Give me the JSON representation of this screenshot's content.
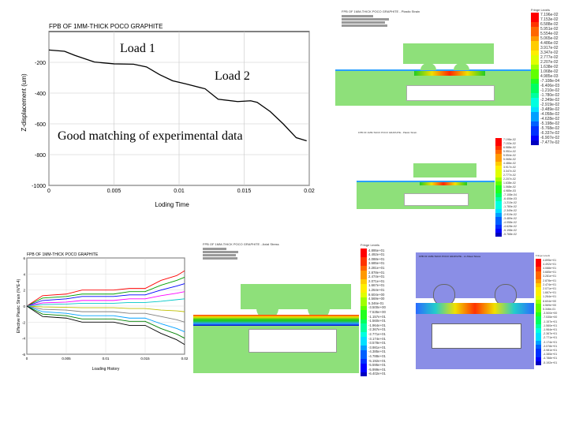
{
  "annotations": {
    "load1": "Load 1",
    "load2": "Load 2",
    "matching": "Good matching of experimental data"
  },
  "top_plot": {
    "title": "FPB OF 1MM-THICK POCO GRAPHITE",
    "xlabel": "Loding Time",
    "ylabel": "Z-displacement (um)"
  },
  "bottom_plot": {
    "title": "FPB OF 1MM-THICK POCO GRAPHITE",
    "xlabel": "Loading History",
    "ylabel": "Effective Plastic Strain (%*E-4)"
  },
  "fea": {
    "panel1_title": "FPB OF 1MM-THICK POCO GRAPHITE - Plastic Strain",
    "panel1_fringe_title": "Fringe Levels",
    "panel2_title": "FPB OF 1MM-THICK POCO GRAPHITE - Plastic Strain",
    "panel3_title": "FPB OF 1MM-THICK POCO GRAPHITE - Axial Stress",
    "panel4_title": "FPB OF 1MM-THICK POCO GRAPHITE - xx-Shear Stress",
    "fringe_title": "Fringe Levels"
  },
  "fringe_values": {
    "p1": [
      "7.196e-02",
      "7.153e-02",
      "6.588e-02",
      "5.951e-02",
      "5.554e-02",
      "5.065e-02",
      "4.486e-02",
      "3.917e-02",
      "3.347e-02",
      "2.777e-02",
      "2.207e-02",
      "1.638e-02",
      "1.068e-02",
      "4.985e-03",
      "-7.108e-04",
      "-6.406e-03",
      "-1.210e-02",
      "-1.780e-02",
      "-2.349e-02",
      "-2.919e-02",
      "-3.489e-02",
      "-4.058e-02",
      "-4.628e-02",
      "-5.198e-02",
      "-5.768e-02",
      "-6.337e-02",
      "-6.907e-02",
      "-7.477e-02"
    ],
    "p3": [
      "4.895e+01",
      "4.492e+01",
      "4.088e+01",
      "3.685e+01",
      "3.281e+01",
      "2.878e+01",
      "2.474e+01",
      "2.071e+01",
      "1.667e+01",
      "1.264e+01",
      "8.604e+00",
      "4.569e+00",
      "5.346e-01",
      "-3.500e+00",
      "-7.535e+00",
      "-1.157e+01",
      "-1.560e+01",
      "-1.964e+01",
      "-2.367e+01",
      "-2.771e+01",
      "-3.174e+01",
      "-3.578e+01",
      "-3.981e+01",
      "-4.385e+01",
      "-4.788e+01",
      "-5.192e+01",
      "-5.595e+01",
      "-5.999e+01",
      "-6.402e+01"
    ]
  },
  "chart_data": [
    {
      "type": "line",
      "title": "FPB OF 1MM-THICK POCO GRAPHITE",
      "xlabel": "Loding Time",
      "ylabel": "Z-displacement (um)",
      "x_ticks": [
        "0",
        "0.005",
        "0.01",
        "0.015",
        "0.02"
      ],
      "y_ticks": [
        "-200",
        "-400",
        "-600",
        "-800",
        "-1000"
      ],
      "xlim": [
        0,
        0.02
      ],
      "ylim": [
        -1000,
        0
      ],
      "series": [
        {
          "x": [
            0,
            0.0012,
            0.002,
            0.0035,
            0.005,
            0.0065,
            0.0075,
            0.0085,
            0.0095,
            0.0105,
            0.012,
            0.013,
            0.0145,
            0.0155,
            0.016,
            0.017,
            0.018,
            0.019,
            0.0198
          ],
          "y": [
            -120,
            -128,
            -155,
            -198,
            -210,
            -212,
            -230,
            -280,
            -320,
            -340,
            -372,
            -440,
            -455,
            -450,
            -460,
            -520,
            -600,
            -690,
            -710
          ]
        }
      ]
    },
    {
      "type": "line",
      "title": "FPB OF 1MM-THICK POCO GRAPHITE",
      "xlabel": "Loading History",
      "ylabel": "Effective Plastic Strain (%*E-4)",
      "x_ticks": [
        "0",
        "0.005",
        "0.01",
        "0.015",
        "0.02"
      ],
      "y_ticks": [
        "6",
        "4",
        "2",
        "0",
        "-2",
        "-4",
        "-6"
      ],
      "xlim": [
        0,
        0.02
      ],
      "ylim": [
        -6,
        6
      ],
      "series": [
        {
          "color": "#ff0000",
          "x": [
            0,
            0.002,
            0.005,
            0.007,
            0.009,
            0.011,
            0.013,
            0.015,
            0.017,
            0.019,
            0.02
          ],
          "y": [
            0,
            1.3,
            1.5,
            2.0,
            2.0,
            2.0,
            2.2,
            2.2,
            3.2,
            3.8,
            4.4
          ]
        },
        {
          "color": "#00a000",
          "x": [
            0,
            0.002,
            0.005,
            0.007,
            0.009,
            0.011,
            0.013,
            0.015,
            0.017,
            0.019,
            0.02
          ],
          "y": [
            0,
            1.0,
            1.2,
            1.5,
            1.5,
            1.5,
            1.8,
            1.8,
            2.6,
            3.2,
            3.6
          ]
        },
        {
          "color": "#0000ff",
          "x": [
            0,
            0.002,
            0.005,
            0.007,
            0.009,
            0.011,
            0.013,
            0.015,
            0.017,
            0.019,
            0.02
          ],
          "y": [
            0,
            0.7,
            0.9,
            1.2,
            1.2,
            1.2,
            1.4,
            1.4,
            2.0,
            2.5,
            2.8
          ]
        },
        {
          "color": "#ff00ff",
          "x": [
            0,
            0.002,
            0.005,
            0.007,
            0.009,
            0.011,
            0.013,
            0.015,
            0.017,
            0.019,
            0.02
          ],
          "y": [
            0,
            0.4,
            0.5,
            0.7,
            0.7,
            0.7,
            0.9,
            0.9,
            1.3,
            1.6,
            1.8
          ]
        },
        {
          "color": "#00c8c8",
          "x": [
            0,
            0.002,
            0.005,
            0.007,
            0.009,
            0.011,
            0.013,
            0.015,
            0.017,
            0.019,
            0.02
          ],
          "y": [
            0,
            0.2,
            0.25,
            0.35,
            0.35,
            0.35,
            0.45,
            0.45,
            0.6,
            0.8,
            0.9
          ]
        },
        {
          "color": "#c0c000",
          "x": [
            0,
            0.002,
            0.005,
            0.007,
            0.009,
            0.011,
            0.013,
            0.015,
            0.017,
            0.019,
            0.02
          ],
          "y": [
            0,
            -0.1,
            -0.15,
            -0.2,
            -0.2,
            -0.2,
            -0.3,
            -0.3,
            -0.5,
            -0.6,
            -0.7
          ]
        },
        {
          "color": "#808080",
          "x": [
            0,
            0.002,
            0.005,
            0.007,
            0.009,
            0.011,
            0.013,
            0.015,
            0.017,
            0.019,
            0.02
          ],
          "y": [
            0,
            -0.4,
            -0.5,
            -0.7,
            -0.7,
            -0.7,
            -0.9,
            -0.9,
            -1.3,
            -1.7,
            -2.0
          ]
        },
        {
          "color": "#00a0ff",
          "x": [
            0,
            0.002,
            0.005,
            0.007,
            0.009,
            0.011,
            0.013,
            0.015,
            0.017,
            0.019,
            0.02
          ],
          "y": [
            0,
            -0.7,
            -0.9,
            -1.2,
            -1.2,
            -1.2,
            -1.5,
            -1.5,
            -2.2,
            -2.8,
            -3.2
          ]
        },
        {
          "color": "#008000",
          "x": [
            0,
            0.002,
            0.005,
            0.007,
            0.009,
            0.011,
            0.013,
            0.015,
            0.017,
            0.019,
            0.02
          ],
          "y": [
            0,
            -1.0,
            -1.2,
            -1.6,
            -1.6,
            -1.6,
            -1.9,
            -1.9,
            -2.8,
            -3.5,
            -4.0
          ]
        },
        {
          "color": "#000000",
          "x": [
            0,
            0.002,
            0.005,
            0.007,
            0.009,
            0.011,
            0.013,
            0.015,
            0.017,
            0.019,
            0.02
          ],
          "y": [
            0,
            -1.3,
            -1.5,
            -2.0,
            -2.0,
            -2.0,
            -2.4,
            -2.4,
            -3.4,
            -4.2,
            -4.8
          ]
        }
      ]
    }
  ]
}
